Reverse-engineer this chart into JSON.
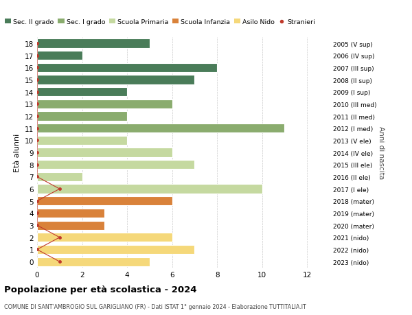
{
  "ages": [
    18,
    17,
    16,
    15,
    14,
    13,
    12,
    11,
    10,
    9,
    8,
    7,
    6,
    5,
    4,
    3,
    2,
    1,
    0
  ],
  "right_labels": [
    "2005 (V sup)",
    "2006 (IV sup)",
    "2007 (III sup)",
    "2008 (II sup)",
    "2009 (I sup)",
    "2010 (III med)",
    "2011 (II med)",
    "2012 (I med)",
    "2013 (V ele)",
    "2014 (IV ele)",
    "2015 (III ele)",
    "2016 (II ele)",
    "2017 (I ele)",
    "2018 (mater)",
    "2019 (mater)",
    "2020 (mater)",
    "2021 (nido)",
    "2022 (nido)",
    "2023 (nido)"
  ],
  "bar_values": [
    5,
    2,
    8,
    7,
    4,
    6,
    4,
    11,
    4,
    6,
    7,
    2,
    10,
    6,
    3,
    3,
    6,
    7,
    5
  ],
  "bar_colors": [
    "#4a7c59",
    "#4a7c59",
    "#4a7c59",
    "#4a7c59",
    "#4a7c59",
    "#8aac6e",
    "#8aac6e",
    "#8aac6e",
    "#c5d9a0",
    "#c5d9a0",
    "#c5d9a0",
    "#c5d9a0",
    "#c5d9a0",
    "#d9823a",
    "#d9823a",
    "#d9823a",
    "#f5d87a",
    "#f5d87a",
    "#f5d87a"
  ],
  "stranieri_by_age": {
    "6": 1,
    "2": 1,
    "0": 1
  },
  "legend_labels": [
    "Sec. II grado",
    "Sec. I grado",
    "Scuola Primaria",
    "Scuola Infanzia",
    "Asilo Nido",
    "Stranieri"
  ],
  "legend_colors": [
    "#4a7c59",
    "#8aac6e",
    "#c5d9a0",
    "#d9823a",
    "#f5d87a",
    "#c0392b"
  ],
  "ylabel": "Età alunni",
  "right_ylabel": "Anni di nascita",
  "title": "Popolazione per età scolastica - 2024",
  "subtitle": "COMUNE DI SANT'AMBROGIO SUL GARIGLIANO (FR) - Dati ISTAT 1° gennaio 2024 - Elaborazione TUTTITALIA.IT",
  "xlim": [
    0,
    13
  ],
  "xticks": [
    0,
    2,
    4,
    6,
    8,
    10,
    12
  ],
  "ylim": [
    -0.5,
    18.5
  ],
  "background_color": "#ffffff",
  "grid_color": "#cccccc",
  "stranieri_color": "#c0392b",
  "bar_height": 0.75
}
